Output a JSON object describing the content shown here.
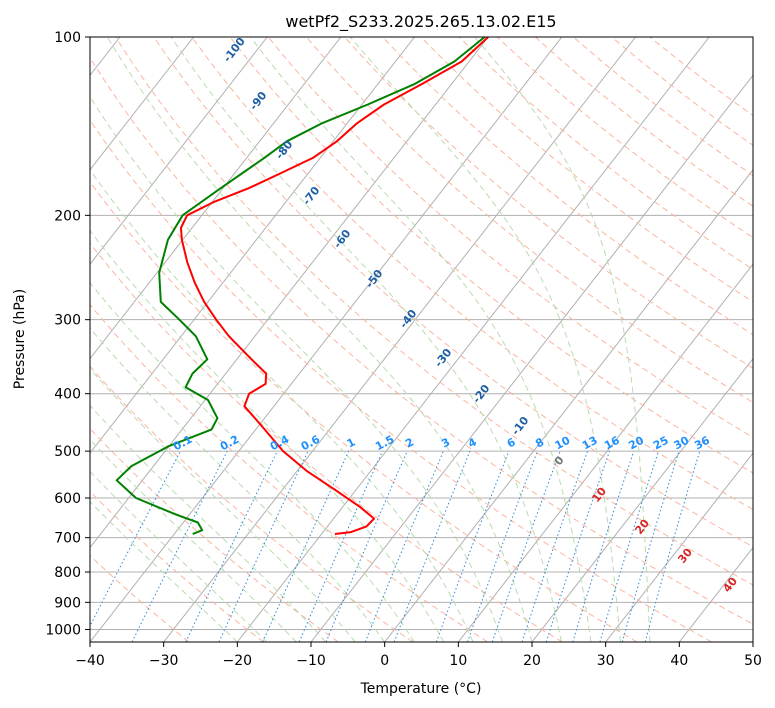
{
  "chart_data": {
    "type": "line",
    "subtype": "skew-t log-p diagram",
    "title": "wetPf2_S233.2025.265.13.02.E15",
    "xlabel": "Temperature (°C)",
    "ylabel": "Pressure (hPa)",
    "xlim": [
      -40,
      50
    ],
    "ylim": [
      1050,
      100
    ],
    "x_ticks": [
      -40,
      -30,
      -20,
      -10,
      0,
      10,
      20,
      30,
      40,
      50
    ],
    "y_ticks": [
      100,
      200,
      300,
      400,
      500,
      600,
      700,
      800,
      900,
      1000
    ],
    "x_tick_labels": [
      "−40",
      "−30",
      "−20",
      "−10",
      "0",
      "10",
      "20",
      "30",
      "40",
      "50"
    ],
    "y_tick_labels": [
      "100",
      "200",
      "300",
      "400",
      "500",
      "600",
      "700",
      "800",
      "900",
      "1000"
    ],
    "isotherm_labels": [
      "-100",
      "-90",
      "-80",
      "-70",
      "-60",
      "-50",
      "-40",
      "-30",
      "-20",
      "-10",
      "0",
      "10",
      "20",
      "30",
      "40"
    ],
    "mixing_ratio_labels": [
      "0.1",
      "0.2",
      "0.4",
      "0.6",
      "1",
      "1.5",
      "2",
      "3",
      "4",
      "6",
      "8",
      "10",
      "13",
      "16",
      "20",
      "25",
      "30",
      "36"
    ],
    "series": [
      {
        "name": "Temperature",
        "color": "#ff0000",
        "points": [
          [
            100,
            -50.0
          ],
          [
            110,
            -51.0
          ],
          [
            120,
            -54.0
          ],
          [
            130,
            -57.0
          ],
          [
            140,
            -58.7
          ],
          [
            150,
            -59.5
          ],
          [
            160,
            -61.0
          ],
          [
            170,
            -63.8
          ],
          [
            180,
            -66.5
          ],
          [
            190,
            -69.8
          ],
          [
            200,
            -72.0
          ],
          [
            210,
            -71.5
          ],
          [
            220,
            -70.1
          ],
          [
            240,
            -67.0
          ],
          [
            260,
            -63.8
          ],
          [
            280,
            -60.5
          ],
          [
            300,
            -57.0
          ],
          [
            320,
            -53.5
          ],
          [
            350,
            -48.0
          ],
          [
            370,
            -44.5
          ],
          [
            385,
            -43.5
          ],
          [
            400,
            -44.7
          ],
          [
            420,
            -44.0
          ],
          [
            450,
            -40.0
          ],
          [
            500,
            -34.0
          ],
          [
            540,
            -28.7
          ],
          [
            580,
            -23.0
          ],
          [
            620,
            -17.8
          ],
          [
            650,
            -14.5
          ],
          [
            670,
            -14.7
          ],
          [
            685,
            -16.2
          ],
          [
            690,
            -18.2
          ]
        ]
      },
      {
        "name": "Dewpoint",
        "color": "#008000",
        "points": [
          [
            100,
            -50.5
          ],
          [
            110,
            -52.0
          ],
          [
            120,
            -55.0
          ],
          [
            130,
            -59.2
          ],
          [
            140,
            -63.5
          ],
          [
            150,
            -66.3
          ],
          [
            160,
            -67.6
          ],
          [
            180,
            -70.3
          ],
          [
            200,
            -72.6
          ],
          [
            220,
            -72.0
          ],
          [
            250,
            -69.7
          ],
          [
            280,
            -66.4
          ],
          [
            300,
            -62.0
          ],
          [
            320,
            -58.0
          ],
          [
            350,
            -54.0
          ],
          [
            370,
            -54.5
          ],
          [
            390,
            -54.0
          ],
          [
            410,
            -49.6
          ],
          [
            440,
            -46.4
          ],
          [
            460,
            -46.0
          ],
          [
            490,
            -50.0
          ],
          [
            530,
            -53.0
          ],
          [
            560,
            -53.5
          ],
          [
            600,
            -49.0
          ],
          [
            640,
            -41.8
          ],
          [
            660,
            -38.0
          ],
          [
            680,
            -36.6
          ],
          [
            690,
            -37.5
          ]
        ]
      }
    ]
  }
}
